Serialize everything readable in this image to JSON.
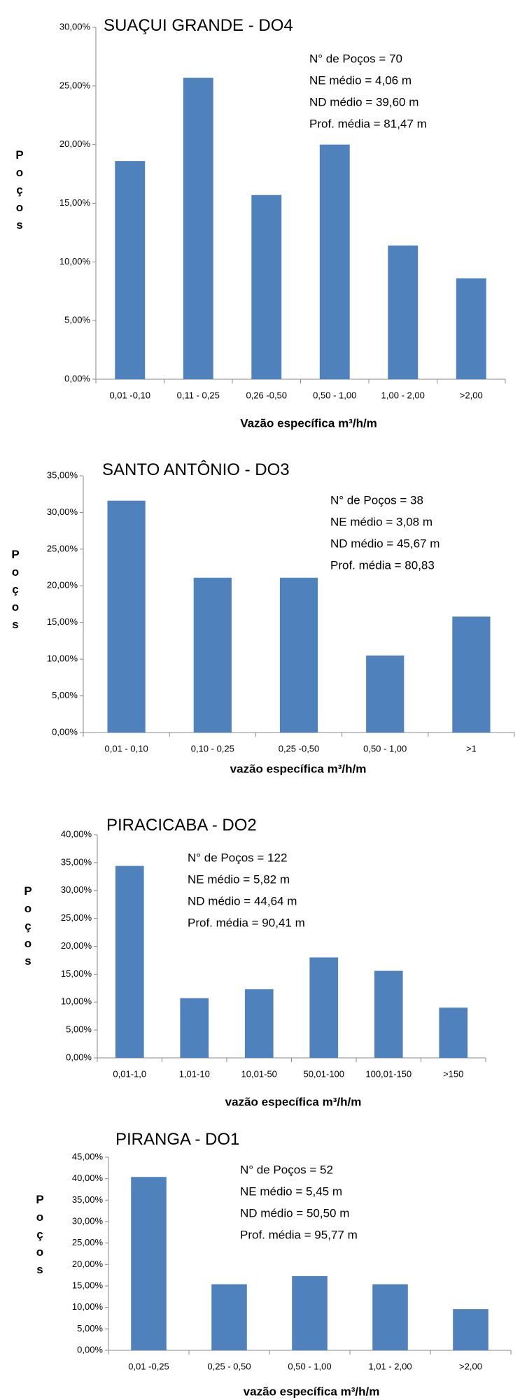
{
  "chart_data": [
    {
      "type": "bar",
      "title": "SUAÇUI GRANDE - DO4",
      "annotations": [
        "N°  de Poços = 70",
        "NE médio = 4,06 m",
        "ND médio = 39,60 m",
        "Prof. média = 81,47 m"
      ],
      "x_label": "Vazão específica m³/h/m",
      "y_label": "Poços",
      "categories": [
        "0,01 -0,10",
        "0,11 - 0,25",
        "0,26 -0,50",
        "0,50 - 1,00",
        "1,00 - 2,00",
        ">2,00"
      ],
      "values": [
        18.6,
        25.7,
        15.7,
        20.0,
        11.4,
        8.6
      ],
      "color": "#4f81bd",
      "ylim": [
        0,
        30
      ],
      "yticks": [
        {
          "value": 0,
          "label": "0,00%"
        },
        {
          "value": 5,
          "label": "5,00%"
        },
        {
          "value": 10,
          "label": "10,00%"
        },
        {
          "value": 15,
          "label": "15,00%"
        },
        {
          "value": 20,
          "label": "20,00%"
        },
        {
          "value": 25,
          "label": "25,00%"
        },
        {
          "value": 30,
          "label": "30,00%"
        }
      ]
    },
    {
      "type": "bar",
      "title": "SANTO ANTÔNIO - DO3",
      "annotations": [
        "N° de Poços = 38",
        "NE médio = 3,08 m",
        "ND médio = 45,67 m",
        "Prof. média =  80,83"
      ],
      "x_label": "vazão específica m³/h/m",
      "y_label": "Poços",
      "categories": [
        "0,01 - 0,10",
        "0,10 - 0,25",
        "0,25 -0,50",
        "0,50 - 1,00",
        ">1"
      ],
      "values": [
        31.6,
        21.1,
        21.1,
        10.5,
        15.8
      ],
      "color": "#4f81bd",
      "ylim": [
        0,
        35
      ],
      "yticks": [
        {
          "value": 0,
          "label": "0,00%"
        },
        {
          "value": 5,
          "label": "5,00%"
        },
        {
          "value": 10,
          "label": "10,00%"
        },
        {
          "value": 15,
          "label": "15,00%"
        },
        {
          "value": 20,
          "label": "20,00%"
        },
        {
          "value": 25,
          "label": "25,00%"
        },
        {
          "value": 30,
          "label": "30,00%"
        },
        {
          "value": 35,
          "label": "35,00%"
        }
      ]
    },
    {
      "type": "bar",
      "title": "PIRACICABA - DO2",
      "annotations": [
        "N° de Poços = 122",
        "NE médio = 5,82 m",
        "ND médio = 44,64 m",
        "Prof. média = 90,41 m"
      ],
      "x_label": "vazão específica m³/h/m",
      "y_label": "Poços",
      "categories": [
        "0,01-1,0",
        "1,01-10",
        "10,01-50",
        "50,01-100",
        "100,01-150",
        ">150"
      ],
      "values": [
        34.4,
        10.7,
        12.3,
        18.0,
        15.6,
        9.0
      ],
      "color": "#4f81bd",
      "ylim": [
        0,
        40
      ],
      "yticks": [
        {
          "value": 0,
          "label": "0,00%"
        },
        {
          "value": 5,
          "label": "5,00%"
        },
        {
          "value": 10,
          "label": "10,00%"
        },
        {
          "value": 15,
          "label": "15,00%"
        },
        {
          "value": 20,
          "label": "20,00%"
        },
        {
          "value": 25,
          "label": "25,00%"
        },
        {
          "value": 30,
          "label": "30,00%"
        },
        {
          "value": 35,
          "label": "35,00%"
        },
        {
          "value": 40,
          "label": "40,00%"
        }
      ]
    },
    {
      "type": "bar",
      "title": "PIRANGA - DO1",
      "annotations": [
        "N° de Poços = 52",
        "NE médio = 5,45 m",
        "ND médio = 50,50 m",
        "Prof. média = 95,77 m"
      ],
      "x_label": "vazão específica m³/h/m",
      "y_label": "Poços",
      "categories": [
        "0,01 -0,25",
        "0,25 - 0,50",
        "0,50 - 1,00",
        "1,01 - 2,00",
        ">2,00"
      ],
      "values": [
        40.4,
        15.4,
        17.3,
        15.4,
        9.6
      ],
      "color": "#4f81bd",
      "ylim": [
        0,
        45
      ],
      "yticks": [
        {
          "value": 0,
          "label": "0,00%"
        },
        {
          "value": 5,
          "label": "5,00%"
        },
        {
          "value": 10,
          "label": "10,00%"
        },
        {
          "value": 15,
          "label": "15,00%"
        },
        {
          "value": 20,
          "label": "20,00%"
        },
        {
          "value": 25,
          "label": "25,00%"
        },
        {
          "value": 30,
          "label": "30,00%"
        },
        {
          "value": 35,
          "label": "35,00%"
        },
        {
          "value": 40,
          "label": "40,00%"
        },
        {
          "value": 45,
          "label": "45,00%"
        }
      ]
    }
  ]
}
